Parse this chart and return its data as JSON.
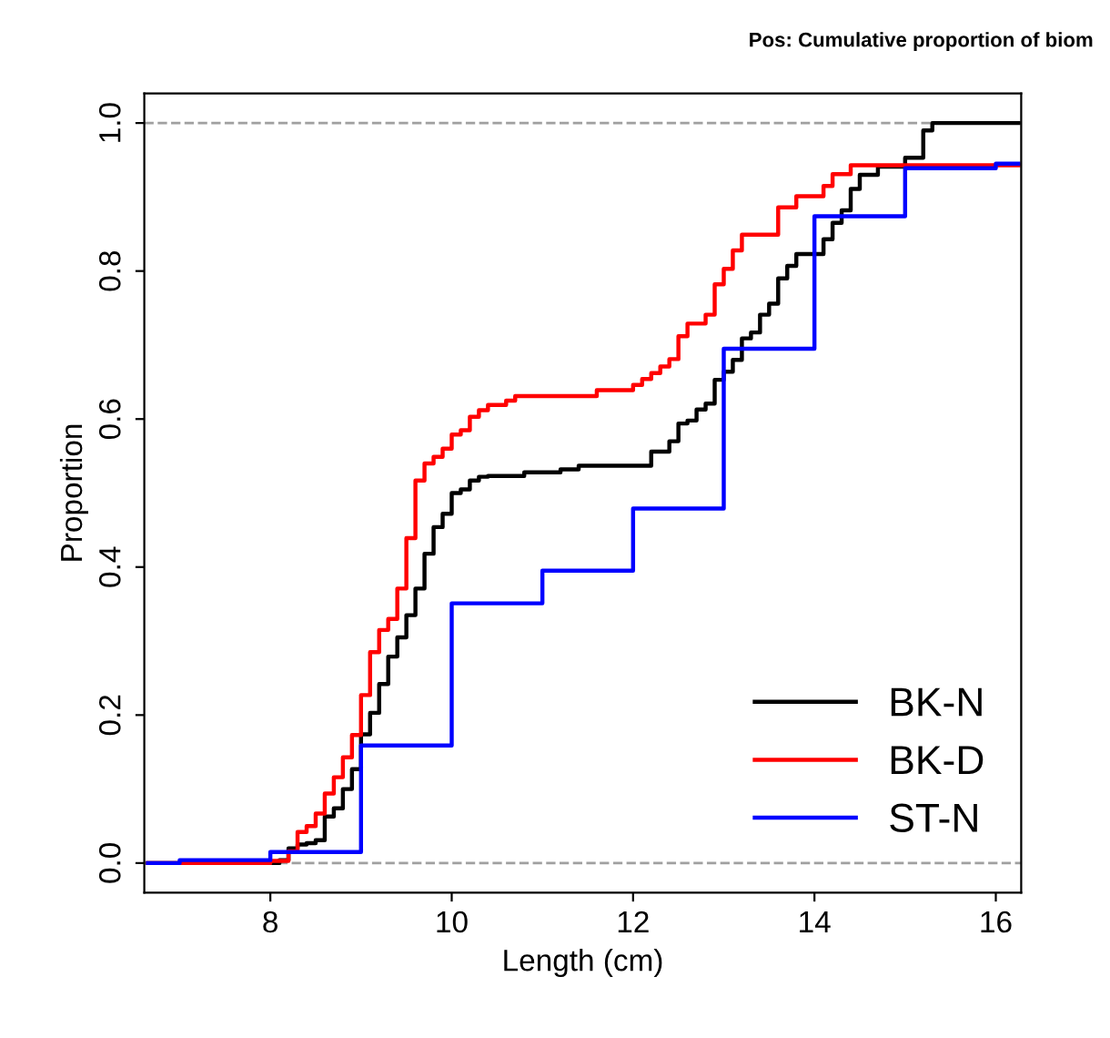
{
  "chart_data": {
    "type": "step",
    "title": "Pos: Cumulative proportion of biom",
    "xlabel": "Length (cm)",
    "ylabel": "Proportion",
    "xlim": [
      6.61,
      16.28
    ],
    "ylim": [
      -0.04,
      1.04
    ],
    "xticks": [
      8,
      10,
      12,
      14,
      16
    ],
    "yticks": [
      {
        "value": 0,
        "label": "0.0"
      },
      0.2,
      0.4,
      0.6,
      0.8,
      {
        "value": 1,
        "label": "1.0"
      }
    ],
    "grid": false,
    "legend": "bottom right",
    "line_style": "solid",
    "marker": "none",
    "ref_lines": [
      {
        "axis": "y",
        "value": 0,
        "color": "#a0a0a0",
        "line_style": "dashed"
      },
      {
        "axis": "y",
        "value": 1,
        "color": "#a0a0a0",
        "line_style": "dashed"
      }
    ],
    "series": [
      {
        "name": "BK-N",
        "color": "#000000",
        "x": [
          6.65,
          8.1,
          8.2,
          8.3,
          8.4,
          8.5,
          8.6,
          8.7,
          8.8,
          8.9,
          9.0,
          9.1,
          9.2,
          9.3,
          9.4,
          9.5,
          9.6,
          9.7,
          9.8,
          9.9,
          10.0,
          10.1,
          10.2,
          10.3,
          10.4,
          10.8,
          11.2,
          11.4,
          12.2,
          12.4,
          12.5,
          12.6,
          12.7,
          12.8,
          12.9,
          13.0,
          13.1,
          13.2,
          13.3,
          13.4,
          13.5,
          13.6,
          13.7,
          13.8,
          14.1,
          14.2,
          14.3,
          14.4,
          14.5,
          14.7,
          15.0,
          15.2,
          15.3,
          16.25
        ],
        "values": [
          0,
          0.004,
          0.02,
          0.025,
          0.027,
          0.031,
          0.063,
          0.074,
          0.1,
          0.127,
          0.174,
          0.203,
          0.242,
          0.279,
          0.305,
          0.335,
          0.371,
          0.418,
          0.454,
          0.472,
          0.5,
          0.505,
          0.517,
          0.522,
          0.523,
          0.528,
          0.532,
          0.537,
          0.556,
          0.57,
          0.594,
          0.598,
          0.613,
          0.621,
          0.653,
          0.664,
          0.68,
          0.709,
          0.717,
          0.741,
          0.756,
          0.79,
          0.807,
          0.823,
          0.843,
          0.865,
          0.882,
          0.911,
          0.93,
          0.941,
          0.953,
          0.99,
          1.0,
          1.0
        ]
      },
      {
        "name": "BK-D",
        "color": "#ff0000",
        "x": [
          6.65,
          8.0,
          8.2,
          8.3,
          8.4,
          8.5,
          8.6,
          8.7,
          8.8,
          8.9,
          9.0,
          9.1,
          9.2,
          9.3,
          9.4,
          9.5,
          9.6,
          9.7,
          9.8,
          9.9,
          10.0,
          10.1,
          10.2,
          10.3,
          10.4,
          10.6,
          10.7,
          11.6,
          12.0,
          12.1,
          12.2,
          12.3,
          12.4,
          12.5,
          12.6,
          12.8,
          12.9,
          13.0,
          13.1,
          13.2,
          13.6,
          13.8,
          14.1,
          14.2,
          14.4,
          16.25
        ],
        "values": [
          0,
          0.003,
          0.016,
          0.042,
          0.05,
          0.067,
          0.094,
          0.116,
          0.143,
          0.173,
          0.227,
          0.285,
          0.315,
          0.33,
          0.371,
          0.439,
          0.517,
          0.54,
          0.549,
          0.56,
          0.579,
          0.585,
          0.603,
          0.612,
          0.619,
          0.625,
          0.631,
          0.639,
          0.646,
          0.654,
          0.662,
          0.671,
          0.681,
          0.712,
          0.729,
          0.741,
          0.782,
          0.803,
          0.828,
          0.849,
          0.886,
          0.901,
          0.915,
          0.931,
          0.943,
          0.943
        ]
      },
      {
        "name": "ST-N",
        "color": "#0000ff",
        "x": [
          6.65,
          7,
          8,
          9,
          10,
          11,
          12,
          13,
          14,
          15,
          16,
          16.25
        ],
        "values": [
          0,
          0.004,
          0.015,
          0.159,
          0.351,
          0.395,
          0.479,
          0.695,
          0.874,
          0.939,
          0.945,
          0.945
        ]
      }
    ]
  }
}
